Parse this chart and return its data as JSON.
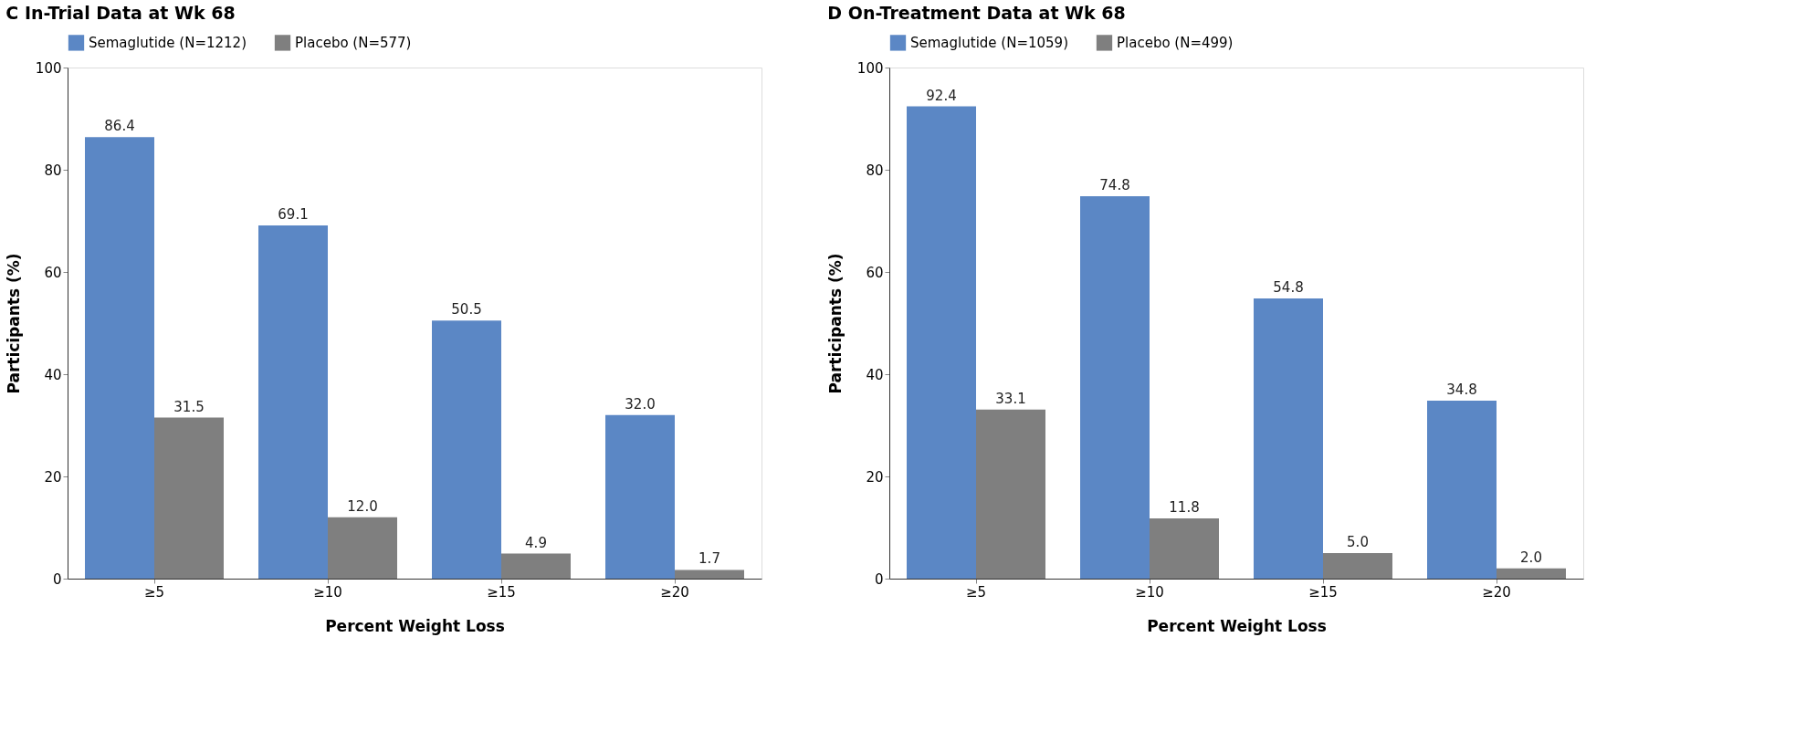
{
  "chart_data": [
    {
      "type": "bar",
      "title": "C In-Trial Data at Wk 68",
      "xlabel": "Percent Weight Loss",
      "ylabel": "Participants (%)",
      "categories": [
        "≥5",
        "≥10",
        "≥15",
        "≥20"
      ],
      "ylim": [
        0,
        100
      ],
      "yticks": [
        0,
        20,
        40,
        60,
        80,
        100
      ],
      "grid": false,
      "legend": "top",
      "series": [
        {
          "name": "Semaglutide (N=1212)",
          "color": "#5b87c5",
          "values": [
            86.4,
            69.1,
            50.5,
            32.0
          ],
          "value_labels": [
            "86.4",
            "69.1",
            "50.5",
            "32.0"
          ]
        },
        {
          "name": "Placebo (N=577)",
          "color": "#7f7f7f",
          "values": [
            31.5,
            12.0,
            4.9,
            1.7
          ],
          "value_labels": [
            "31.5",
            "12.0",
            "4.9",
            "1.7"
          ]
        }
      ]
    },
    {
      "type": "bar",
      "title": "D On-Treatment Data at Wk 68",
      "xlabel": "Percent Weight Loss",
      "ylabel": "Participants (%)",
      "categories": [
        "≥5",
        "≥10",
        "≥15",
        "≥20"
      ],
      "ylim": [
        0,
        100
      ],
      "yticks": [
        0,
        20,
        40,
        60,
        80,
        100
      ],
      "grid": false,
      "legend": "top",
      "series": [
        {
          "name": "Semaglutide (N=1059)",
          "color": "#5b87c5",
          "values": [
            92.4,
            74.8,
            54.8,
            34.8
          ],
          "value_labels": [
            "92.4",
            "74.8",
            "54.8",
            "34.8"
          ]
        },
        {
          "name": "Placebo (N=499)",
          "color": "#7f7f7f",
          "values": [
            33.1,
            11.8,
            5.0,
            2.0
          ],
          "value_labels": [
            "33.1",
            "11.8",
            "5.0",
            "2.0"
          ]
        }
      ]
    }
  ]
}
